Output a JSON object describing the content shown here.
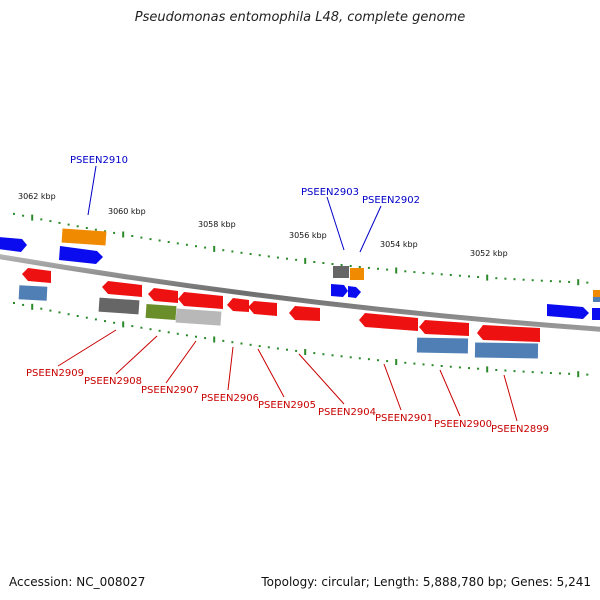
{
  "title": "Pseudomonas entomophila L48, complete genome",
  "accession": "Accession: NC_008027",
  "stats": "Topology: circular; Length: 5,888,780 bp; Genes: 5,241",
  "colors": {
    "backbone": "#7f7f7f",
    "tick": "#2a8a2a",
    "label_forward": "#0000c8",
    "label_reverse": "#c80000",
    "gene_blue": "#0b0bf0",
    "gene_red": "#ee1111",
    "gene_orange": "#f08a00",
    "gene_steel": "#4f7fb5",
    "gene_gray": "#666666",
    "gene_olive": "#6a8f2a",
    "gene_lightgray": "#b8b8b8"
  },
  "kbp_ticks": [
    "3062 kbp",
    "3060 kbp",
    "3058 kbp",
    "3056 kbp",
    "3054 kbp",
    "3052 kbp"
  ],
  "forward_labels": [
    "PSEEN2910",
    "PSEEN2903",
    "PSEEN2902"
  ],
  "reverse_labels": [
    "PSEEN2909",
    "PSEEN2908",
    "PSEEN2907",
    "PSEEN2906",
    "PSEEN2905",
    "PSEEN2904",
    "PSEEN2901",
    "PSEEN2900",
    "PSEEN2899"
  ]
}
